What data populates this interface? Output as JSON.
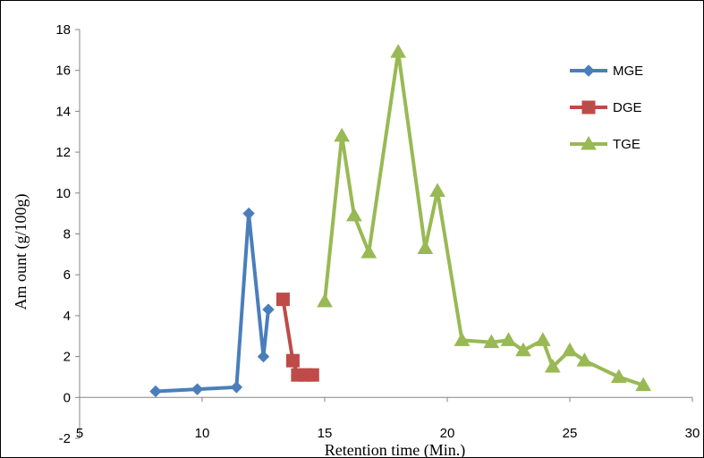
{
  "chart_data": {
    "type": "line",
    "title": "",
    "xlabel": "Retention time  (Min.)",
    "ylabel": "Am ount (g/100g)",
    "xlim": [
      5,
      30
    ],
    "ylim": [
      -2,
      18
    ],
    "x_ticks": [
      5,
      10,
      15,
      20,
      25,
      30
    ],
    "y_ticks": [
      -2,
      0,
      2,
      4,
      6,
      8,
      10,
      12,
      14,
      16,
      18
    ],
    "grid": false,
    "legend_position": "top-right",
    "series": [
      {
        "name": "MGE",
        "color": "#4a7ebb",
        "marker": "diamond",
        "x": [
          8.1,
          9.8,
          11.4,
          11.9,
          12.5,
          12.7
        ],
        "y": [
          0.3,
          0.4,
          0.5,
          9.0,
          2.0,
          4.3
        ]
      },
      {
        "name": "DGE",
        "color": "#be4b48",
        "marker": "square",
        "x": [
          13.3,
          13.7,
          13.9,
          14.2,
          14.5
        ],
        "y": [
          4.8,
          1.8,
          1.1,
          1.1,
          1.1
        ]
      },
      {
        "name": "TGE",
        "color": "#98b954",
        "marker": "triangle",
        "x": [
          15.0,
          15.7,
          16.2,
          16.8,
          18.0,
          19.1,
          19.6,
          20.6,
          21.8,
          22.5,
          23.1,
          23.9,
          24.3,
          25.0,
          25.6,
          27.0,
          28.0
        ],
        "y": [
          4.7,
          12.8,
          8.9,
          7.1,
          16.9,
          7.3,
          10.1,
          2.8,
          2.7,
          2.8,
          2.3,
          2.8,
          1.5,
          2.3,
          1.8,
          1.0,
          0.6
        ]
      }
    ]
  }
}
